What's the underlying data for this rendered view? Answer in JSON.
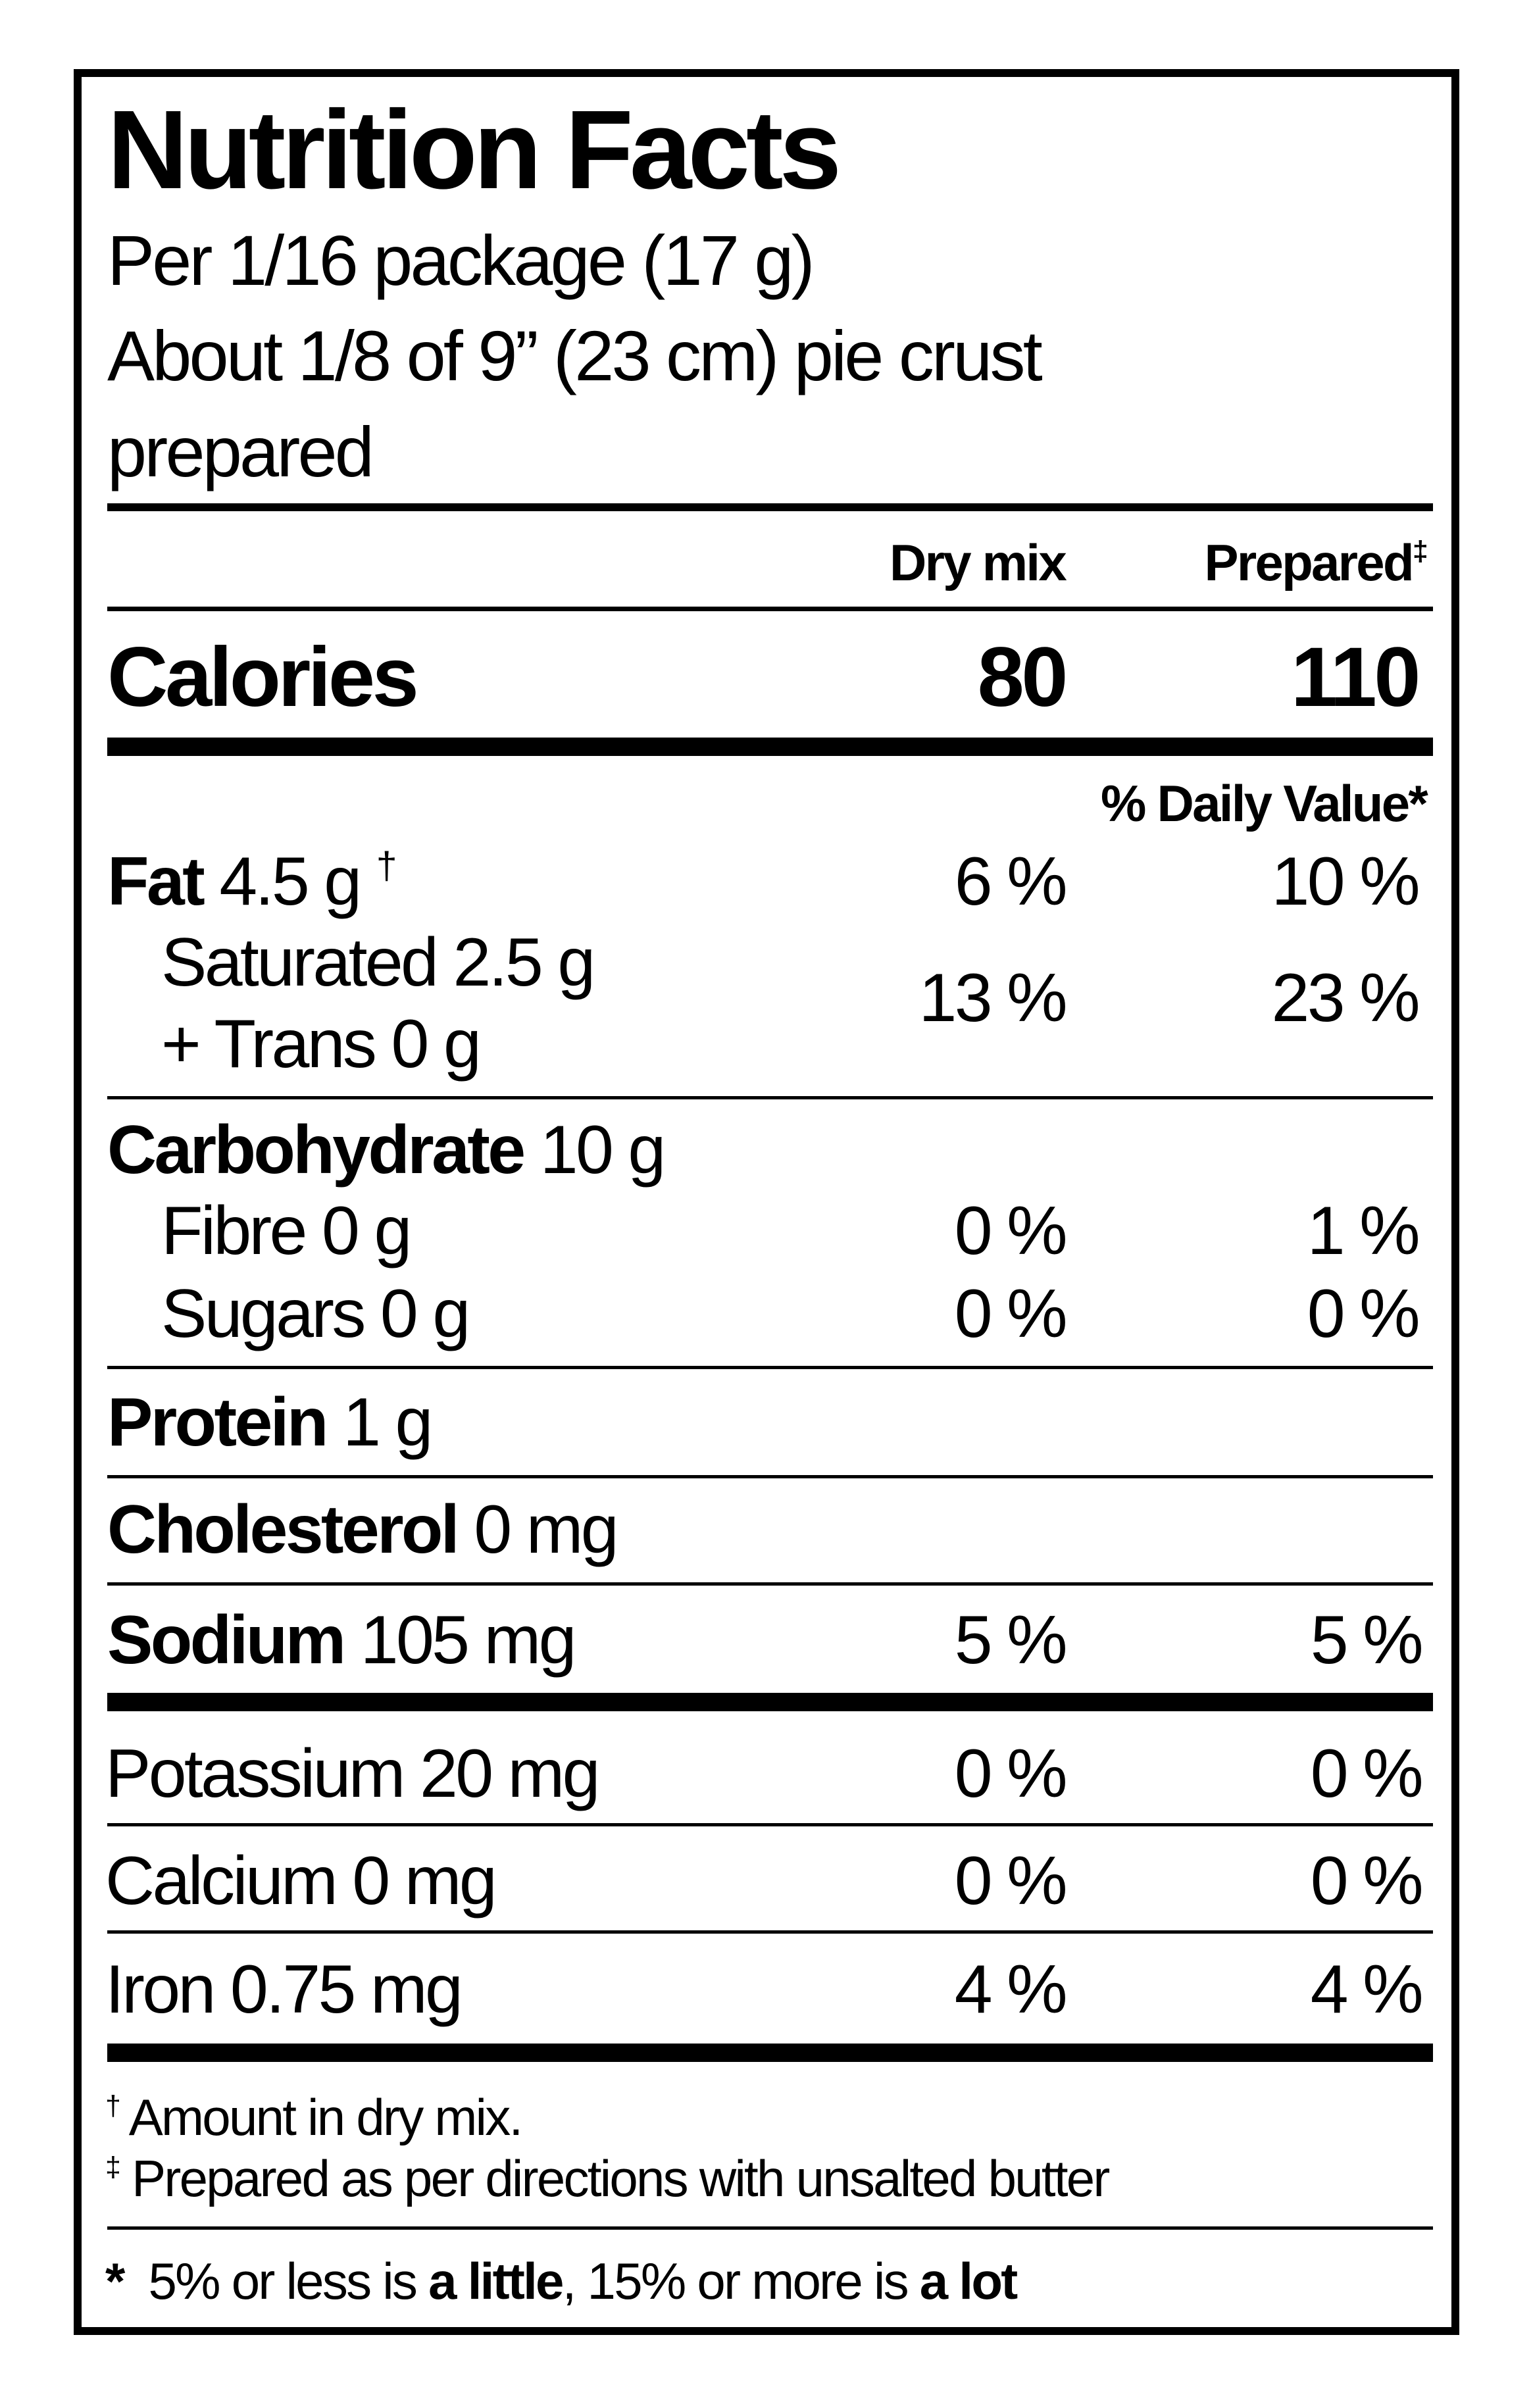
{
  "title": "Nutrition Facts",
  "serving": [
    "Per 1/16 package (17 g)",
    "About 1/8 of 9” (23 cm) pie crust",
    "prepared"
  ],
  "columns": {
    "dry": "Dry mix",
    "prepared": "Prepared",
    "prepared_mark": "‡"
  },
  "calories": {
    "label": "Calories",
    "dry": "80",
    "prepared": "110"
  },
  "dv_header": "% Daily Value*",
  "fat": {
    "label": "Fat",
    "amount": "4.5 g",
    "mark": "†",
    "dry": "6 %",
    "prepared": "10 %"
  },
  "saturated": {
    "line1": "Saturated 2.5 g",
    "line2": "+ Trans 0 g",
    "dry": "13 %",
    "prepared": "23 %"
  },
  "carbohydrate": {
    "label": "Carbohydrate",
    "amount": "10 g"
  },
  "fibre": {
    "label": "Fibre 0 g",
    "dry": "0 %",
    "prepared": "1 %"
  },
  "sugars": {
    "label": "Sugars 0 g",
    "dry": "0 %",
    "prepared": "0 %"
  },
  "protein": {
    "label": "Protein",
    "amount": "1 g"
  },
  "cholesterol": {
    "label": "Cholesterol",
    "amount": "0 mg"
  },
  "sodium": {
    "label": "Sodium",
    "amount": "105 mg",
    "dry": "5 %",
    "prepared": "5 %"
  },
  "potassium": {
    "label": "Potassium 20 mg",
    "dry": "0 %",
    "prepared": "0 %"
  },
  "calcium": {
    "label": "Calcium 0 mg",
    "dry": "0 %",
    "prepared": "0 %"
  },
  "iron": {
    "label": "Iron 0.75 mg",
    "dry": "4 %",
    "prepared": "4 %"
  },
  "footnotes": [
    {
      "mark": "†",
      "text": "Amount in dry mix."
    },
    {
      "mark": "‡",
      "text": "Prepared as per directions with unsalted butter"
    }
  ],
  "dv_note": {
    "mark": "*",
    "p1": "5% or less is ",
    "b1": "a little",
    ",p2": "",
    "p2": ", 15% or more is ",
    "b2": "a lot"
  }
}
